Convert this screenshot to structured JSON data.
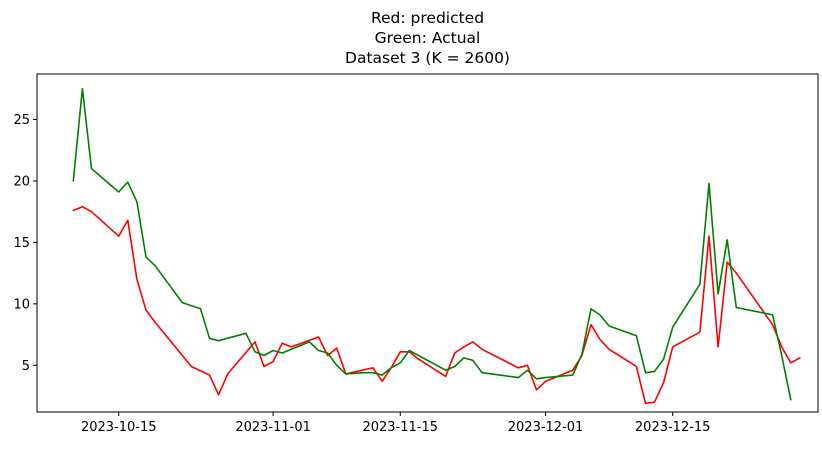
{
  "chart_data": {
    "type": "line",
    "title_lines": [
      "Red: predicted",
      "Green: Actual",
      "Dataset 3 (K = 2600)"
    ],
    "xlabel": "",
    "ylabel": "",
    "xlim": [
      "2023-10-06",
      "2023-12-31"
    ],
    "ylim": [
      1.2,
      28.7
    ],
    "yticks": [
      5,
      10,
      15,
      20,
      25
    ],
    "xticks": [
      "2023-10-15",
      "2023-11-01",
      "2023-11-15",
      "2023-12-01",
      "2023-12-15"
    ],
    "grid": false,
    "legend": "none",
    "series": [
      {
        "color": "#ff0000",
        "points": [
          [
            "2023-10-10",
            17.6
          ],
          [
            "2023-10-11",
            17.9
          ],
          [
            "2023-10-12",
            17.5
          ],
          [
            "2023-10-15",
            15.5
          ],
          [
            "2023-10-16",
            16.8
          ],
          [
            "2023-10-17",
            12.0
          ],
          [
            "2023-10-18",
            9.5
          ],
          [
            "2023-10-19",
            8.5
          ],
          [
            "2023-10-23",
            4.9
          ],
          [
            "2023-10-25",
            4.2
          ],
          [
            "2023-10-26",
            2.6
          ],
          [
            "2023-10-27",
            4.3
          ],
          [
            "2023-10-30",
            6.9
          ],
          [
            "2023-10-31",
            4.9
          ],
          [
            "2023-11-01",
            5.3
          ],
          [
            "2023-11-02",
            6.8
          ],
          [
            "2023-11-03",
            6.5
          ],
          [
            "2023-11-06",
            7.3
          ],
          [
            "2023-11-07",
            5.8
          ],
          [
            "2023-11-08",
            6.4
          ],
          [
            "2023-11-09",
            4.3
          ],
          [
            "2023-11-12",
            4.8
          ],
          [
            "2023-11-13",
            3.7
          ],
          [
            "2023-11-14",
            4.8
          ],
          [
            "2023-11-15",
            6.1
          ],
          [
            "2023-11-16",
            6.1
          ],
          [
            "2023-11-17",
            5.5
          ],
          [
            "2023-11-20",
            4.1
          ],
          [
            "2023-11-21",
            6.0
          ],
          [
            "2023-11-22",
            6.5
          ],
          [
            "2023-11-23",
            6.9
          ],
          [
            "2023-11-24",
            6.3
          ],
          [
            "2023-11-28",
            4.8
          ],
          [
            "2023-11-29",
            5.0
          ],
          [
            "2023-11-30",
            3.0
          ],
          [
            "2023-12-01",
            3.7
          ],
          [
            "2023-12-02",
            4.0
          ],
          [
            "2023-12-04",
            4.6
          ],
          [
            "2023-12-05",
            5.8
          ],
          [
            "2023-12-06",
            8.3
          ],
          [
            "2023-12-07",
            7.1
          ],
          [
            "2023-12-08",
            6.3
          ],
          [
            "2023-12-11",
            4.9
          ],
          [
            "2023-12-12",
            1.9
          ],
          [
            "2023-12-13",
            2.0
          ],
          [
            "2023-12-14",
            3.6
          ],
          [
            "2023-12-15",
            6.5
          ],
          [
            "2023-12-18",
            7.7
          ],
          [
            "2023-12-19",
            15.5
          ],
          [
            "2023-12-20",
            6.5
          ],
          [
            "2023-12-21",
            13.4
          ],
          [
            "2023-12-22",
            12.5
          ],
          [
            "2023-12-26",
            8.3
          ],
          [
            "2023-12-27",
            6.5
          ],
          [
            "2023-12-28",
            5.2
          ],
          [
            "2023-12-29",
            5.6
          ]
        ]
      },
      {
        "color": "#008000",
        "points": [
          [
            "2023-10-10",
            20.0
          ],
          [
            "2023-10-11",
            27.5
          ],
          [
            "2023-10-12",
            21.0
          ],
          [
            "2023-10-15",
            19.1
          ],
          [
            "2023-10-16",
            19.9
          ],
          [
            "2023-10-17",
            18.3
          ],
          [
            "2023-10-18",
            13.8
          ],
          [
            "2023-10-19",
            13.1
          ],
          [
            "2023-10-22",
            10.1
          ],
          [
            "2023-10-24",
            9.6
          ],
          [
            "2023-10-25",
            7.2
          ],
          [
            "2023-10-26",
            7.0
          ],
          [
            "2023-10-29",
            7.6
          ],
          [
            "2023-10-30",
            6.1
          ],
          [
            "2023-10-31",
            5.8
          ],
          [
            "2023-11-01",
            6.2
          ],
          [
            "2023-11-02",
            6.0
          ],
          [
            "2023-11-05",
            6.9
          ],
          [
            "2023-11-06",
            6.2
          ],
          [
            "2023-11-07",
            6.0
          ],
          [
            "2023-11-08",
            5.0
          ],
          [
            "2023-11-09",
            4.3
          ],
          [
            "2023-11-11",
            4.4
          ],
          [
            "2023-11-12",
            4.4
          ],
          [
            "2023-11-13",
            4.2
          ],
          [
            "2023-11-14",
            4.8
          ],
          [
            "2023-11-15",
            5.2
          ],
          [
            "2023-11-16",
            6.2
          ],
          [
            "2023-11-20",
            4.6
          ],
          [
            "2023-11-21",
            4.9
          ],
          [
            "2023-11-22",
            5.6
          ],
          [
            "2023-11-23",
            5.4
          ],
          [
            "2023-11-24",
            4.4
          ],
          [
            "2023-11-28",
            4.0
          ],
          [
            "2023-11-29",
            4.6
          ],
          [
            "2023-11-30",
            3.9
          ],
          [
            "2023-12-01",
            4.0
          ],
          [
            "2023-12-04",
            4.2
          ],
          [
            "2023-12-05",
            5.9
          ],
          [
            "2023-12-06",
            9.6
          ],
          [
            "2023-12-07",
            9.1
          ],
          [
            "2023-12-08",
            8.2
          ],
          [
            "2023-12-11",
            7.4
          ],
          [
            "2023-12-12",
            4.4
          ],
          [
            "2023-12-13",
            4.5
          ],
          [
            "2023-12-14",
            5.5
          ],
          [
            "2023-12-15",
            8.1
          ],
          [
            "2023-12-18",
            11.6
          ],
          [
            "2023-12-19",
            19.8
          ],
          [
            "2023-12-20",
            10.8
          ],
          [
            "2023-12-21",
            15.2
          ],
          [
            "2023-12-22",
            9.7
          ],
          [
            "2023-12-26",
            9.1
          ],
          [
            "2023-12-27",
            5.8
          ],
          [
            "2023-12-28",
            2.2
          ]
        ]
      }
    ]
  }
}
